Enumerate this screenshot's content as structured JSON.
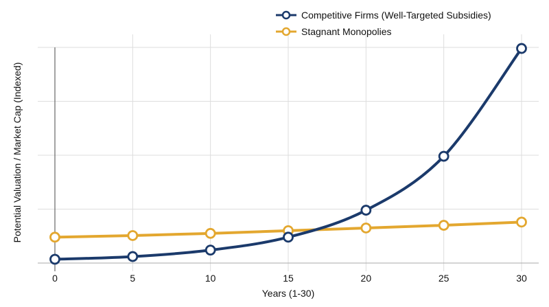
{
  "chart_data": {
    "type": "line",
    "title": "",
    "xlabel": "Years (1-30)",
    "ylabel": "Potential Valuation / Market Cap (Indexed)",
    "x": [
      0,
      5,
      10,
      15,
      20,
      25,
      30
    ],
    "xlim": [
      0,
      30
    ],
    "ylim": [
      0,
      4
    ],
    "y_tick_labels_shown": false,
    "grid": true,
    "legend_position": "top-right",
    "series": [
      {
        "name": "Competitive Firms (Well-Targeted Subsidies)",
        "color": "#1b3a6b",
        "values": [
          0.07,
          0.12,
          0.24,
          0.48,
          0.98,
          1.98,
          3.98
        ]
      },
      {
        "name": "Stagnant Monopolies",
        "color": "#e3a72f",
        "values": [
          0.48,
          0.51,
          0.55,
          0.6,
          0.65,
          0.7,
          0.76
        ]
      }
    ]
  }
}
